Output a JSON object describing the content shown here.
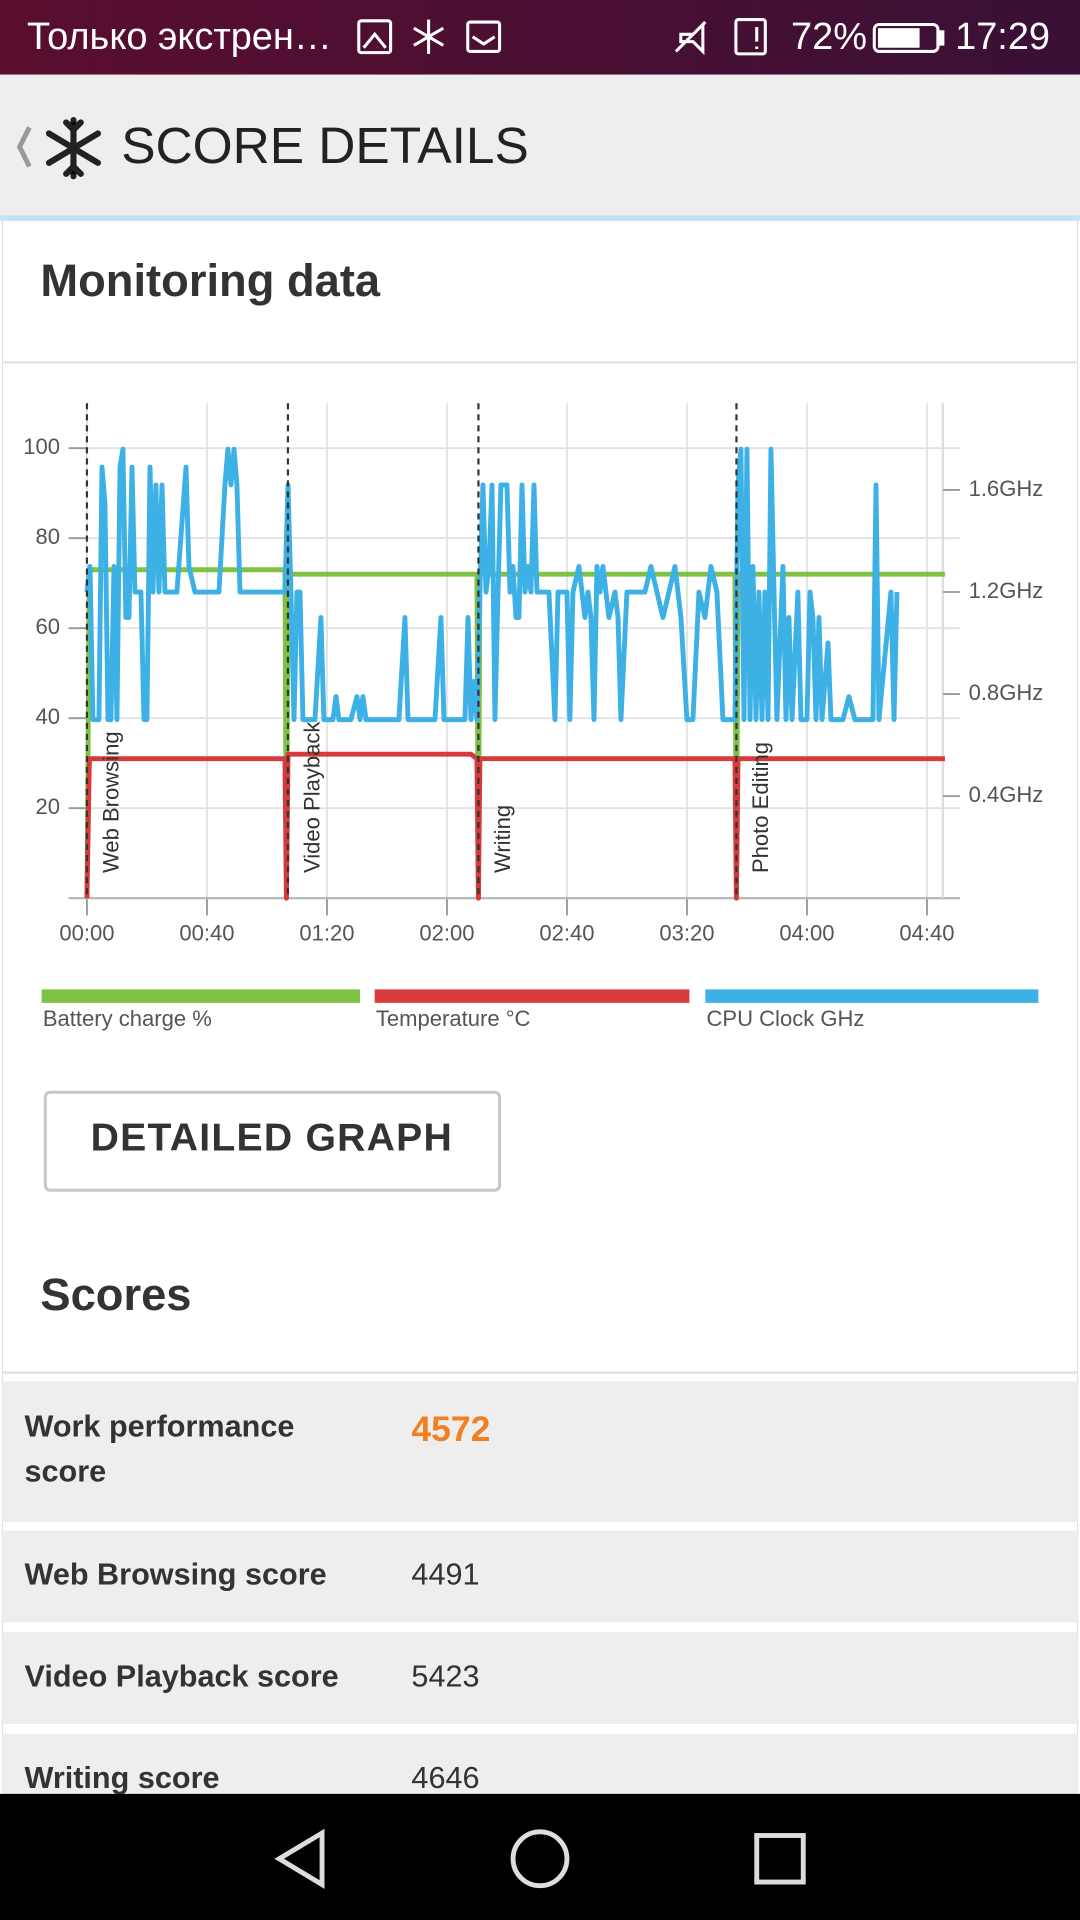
{
  "status_bar": {
    "notification": "Только экстрен…",
    "battery": "72%",
    "time": "17:29"
  },
  "header": {
    "title": "SCORE DETAILS"
  },
  "monitoring": {
    "title": "Monitoring data"
  },
  "chart_data": {
    "type": "line",
    "xlim": [
      0,
      286
    ],
    "ylim": [
      0,
      110
    ],
    "y2lim": [
      0,
      1.94
    ],
    "xticks": [
      {
        "value": 0,
        "label": "00:00"
      },
      {
        "value": 40,
        "label": "00:40"
      },
      {
        "value": 80,
        "label": "01:20"
      },
      {
        "value": 120,
        "label": "02:00"
      },
      {
        "value": 160,
        "label": "02:40"
      },
      {
        "value": 200,
        "label": "03:20"
      },
      {
        "value": 240,
        "label": "04:00"
      },
      {
        "value": 280,
        "label": "04:40"
      }
    ],
    "yticks": [
      20,
      40,
      60,
      80,
      100
    ],
    "y2ticks": [
      {
        "value": 0.4,
        "label": "0.4GHz"
      },
      {
        "value": 0.8,
        "label": "0.8GHz"
      },
      {
        "value": 1.2,
        "label": "1.2GHz"
      },
      {
        "value": 1.6,
        "label": "1.6GHz"
      }
    ],
    "grid": true,
    "phases": [
      {
        "x": 0,
        "label": "Web Browsing"
      },
      {
        "x": 67,
        "label": "Video Playback"
      },
      {
        "x": 130.5,
        "label": "Writing"
      },
      {
        "x": 216.5,
        "label": "Photo Editing"
      }
    ],
    "series": [
      {
        "name": "Battery charge %",
        "color": "#7dc242",
        "x": [
          0,
          0.8,
          66,
          66.5,
          67,
          130,
          130.5,
          131,
          216,
          216.5,
          217,
          286
        ],
        "values": [
          0,
          73,
          73,
          0,
          72,
          72,
          0,
          72,
          72,
          0,
          72,
          72
        ]
      },
      {
        "name": "Temperature °C",
        "color": "#d63a3a",
        "x": [
          0,
          0.8,
          66,
          66.5,
          67,
          128,
          130,
          130.5,
          131,
          216,
          216.5,
          217,
          286
        ],
        "values": [
          0,
          31,
          31,
          0,
          32,
          32,
          31,
          0,
          31,
          31,
          0,
          31,
          31
        ]
      },
      {
        "name": "CPU Clock GHz",
        "color": "#3db1e6",
        "axis": "y2",
        "x": [
          0,
          1,
          2,
          4,
          5,
          6,
          7,
          8,
          9,
          10,
          11,
          12,
          13,
          14,
          15,
          16,
          18,
          19,
          20,
          21,
          22,
          23,
          24,
          25,
          26,
          30,
          33,
          34,
          36,
          44,
          46,
          47,
          48,
          49,
          50,
          51,
          54,
          60,
          66,
          67,
          68,
          69,
          70,
          71,
          72,
          76,
          78,
          79,
          82,
          83,
          84,
          88,
          90,
          91,
          92,
          93,
          100,
          104,
          106,
          107,
          114,
          116,
          118,
          119,
          126,
          127,
          128,
          129,
          130,
          131,
          132,
          133,
          134,
          135,
          136,
          137,
          138,
          140,
          141,
          142,
          143,
          144,
          145,
          146,
          147,
          148,
          149,
          150,
          154,
          156,
          157,
          160,
          161,
          162,
          164,
          166,
          167,
          168,
          169,
          170,
          171,
          172,
          174,
          176,
          177,
          178,
          180,
          186,
          188,
          190,
          192,
          194,
          196,
          198,
          200,
          202,
          204,
          206,
          208,
          210,
          212,
          216,
          217,
          218,
          219,
          220,
          221,
          222,
          223,
          224,
          225,
          226,
          227,
          228,
          229,
          230,
          232,
          233,
          234,
          235,
          237,
          238,
          240,
          241,
          242,
          243,
          244,
          245,
          247,
          248,
          252,
          254,
          256,
          262,
          263,
          264,
          268,
          269,
          270
        ],
        "values": [
          1.2,
          1.3,
          0.7,
          0.7,
          1.69,
          1.55,
          0.7,
          0.7,
          1.3,
          0.7,
          1.69,
          1.76,
          1.1,
          1.1,
          1.69,
          1.2,
          1.2,
          0.7,
          0.7,
          1.69,
          1.2,
          1.62,
          1.2,
          1.62,
          1.2,
          1.2,
          1.69,
          1.3,
          1.2,
          1.2,
          1.62,
          1.76,
          1.62,
          1.76,
          1.62,
          1.2,
          1.2,
          1.2,
          1.2,
          1.62,
          1.2,
          0.7,
          1.2,
          1.2,
          0.7,
          0.7,
          1.1,
          0.7,
          0.7,
          0.79,
          0.7,
          0.7,
          0.79,
          0.7,
          0.79,
          0.7,
          0.7,
          0.7,
          1.1,
          0.7,
          0.7,
          0.7,
          1.1,
          0.7,
          0.7,
          1.1,
          0.7,
          0.85,
          0.7,
          1.2,
          1.62,
          1.2,
          1.3,
          1.62,
          0.7,
          1.2,
          1.62,
          1.62,
          1.2,
          1.3,
          1.1,
          1.1,
          1.62,
          1.2,
          1.3,
          1.2,
          1.62,
          1.2,
          1.2,
          0.7,
          1.2,
          1.2,
          0.7,
          1.2,
          1.3,
          1.1,
          1.2,
          1.1,
          0.7,
          1.3,
          1.2,
          1.3,
          1.1,
          1.2,
          1.1,
          0.7,
          1.2,
          1.2,
          1.3,
          1.2,
          1.1,
          1.2,
          1.3,
          1.1,
          0.7,
          0.7,
          1.2,
          1.1,
          1.3,
          1.2,
          0.7,
          0.7,
          1.62,
          1.76,
          0.7,
          1.76,
          0.7,
          1.3,
          0.7,
          1.2,
          0.7,
          1.2,
          0.7,
          1.76,
          1.2,
          0.7,
          1.3,
          0.7,
          1.1,
          0.7,
          1.2,
          0.7,
          0.7,
          1.2,
          1.1,
          0.7,
          1.1,
          0.7,
          1.0,
          0.7,
          0.7,
          0.79,
          0.7,
          0.7,
          1.62,
          0.7,
          1.2,
          0.7,
          1.2
        ]
      }
    ]
  },
  "button": {
    "label": "DETAILED GRAPH"
  },
  "scores": {
    "title": "Scores",
    "rows": [
      [
        "Work performance score",
        "4572"
      ],
      [
        "Web Browsing score",
        "4491"
      ],
      [
        "Video Playback score",
        "5423"
      ],
      [
        "Writing score",
        "4646"
      ]
    ]
  }
}
